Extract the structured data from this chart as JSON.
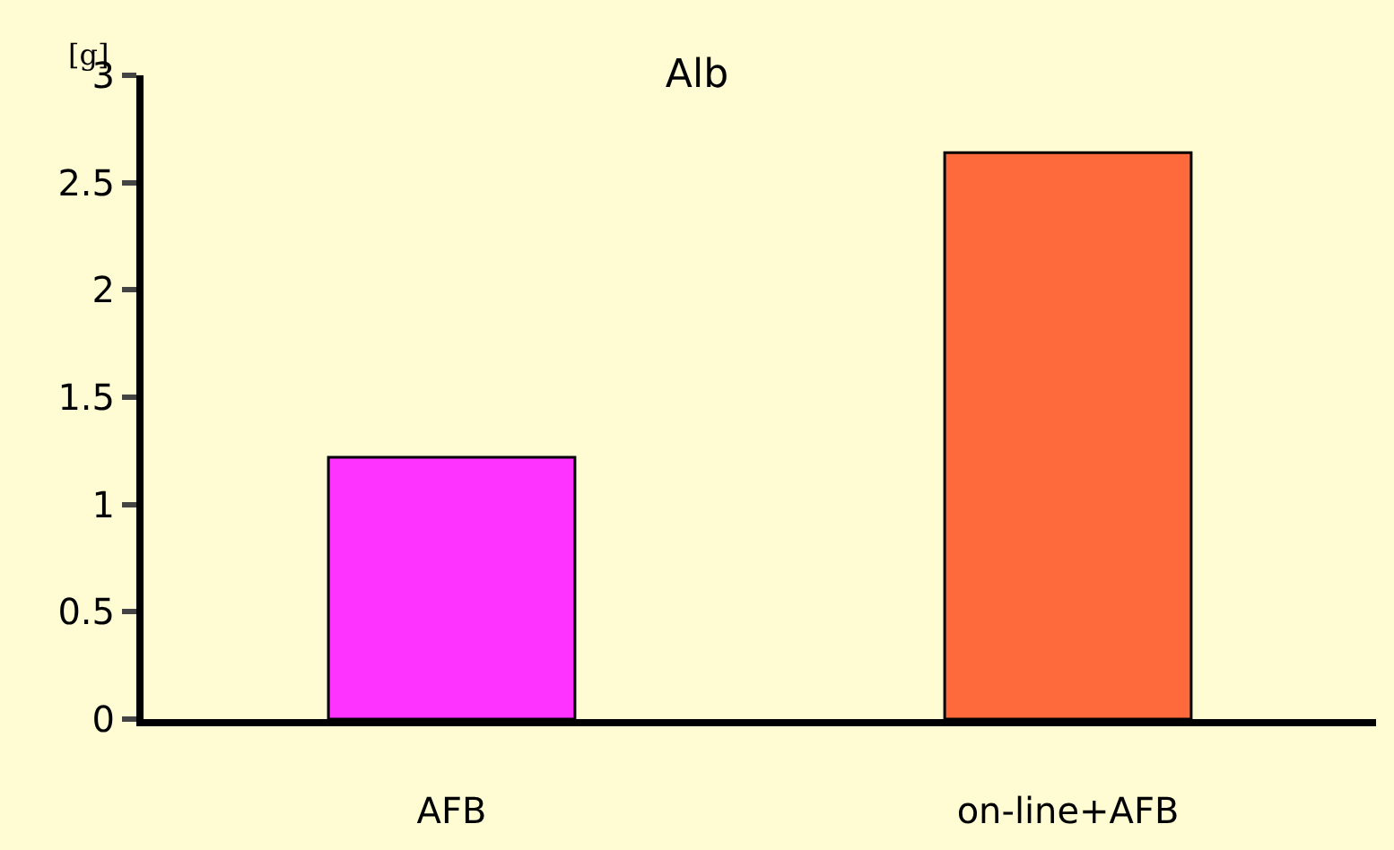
{
  "chart_data": {
    "type": "bar",
    "title": "Alb",
    "ylabel": "[g]",
    "categories": [
      "AFB",
      "on-line+AFB"
    ],
    "values": [
      1.22,
      2.64
    ],
    "colors": [
      "#ff33ff",
      "#ff6a3d"
    ],
    "ylim": [
      0,
      3
    ],
    "yticks": [
      0,
      0.5,
      1,
      1.5,
      2,
      2.5,
      3
    ],
    "grid": false,
    "legend": false
  }
}
